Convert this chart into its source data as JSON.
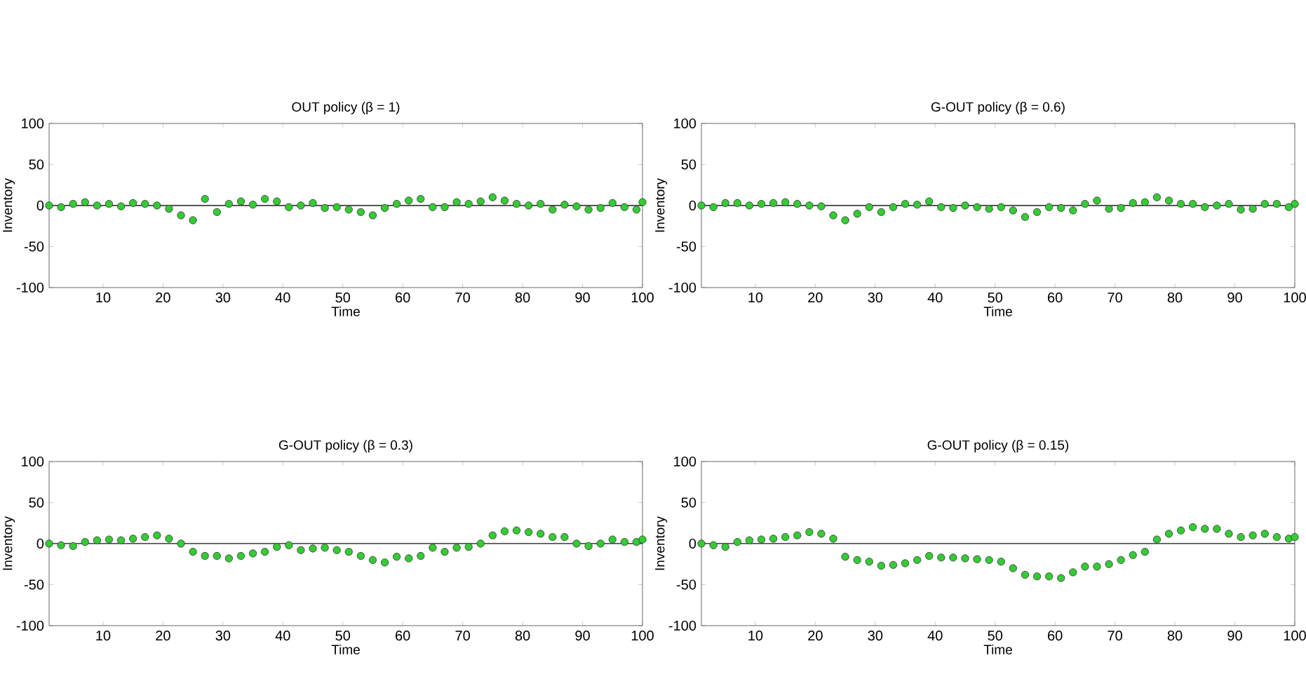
{
  "chart_data": [
    {
      "type": "scatter",
      "title": "OUT policy (β = 1)",
      "xlabel": "Time",
      "ylabel": "Inventory",
      "xlim": [
        1,
        100
      ],
      "ylim": [
        -100,
        100
      ],
      "xticks": [
        10,
        20,
        30,
        40,
        50,
        60,
        70,
        80,
        90,
        100
      ],
      "yticks": [
        -100,
        -50,
        0,
        50,
        100
      ],
      "marker": "circle",
      "ref_lines": [
        {
          "axis": "y",
          "value": 0,
          "color": "#555555"
        }
      ],
      "series": [
        {
          "color": "#33cc33",
          "x": [
            1,
            3,
            5,
            7,
            9,
            11,
            13,
            15,
            17,
            19,
            21,
            23,
            25,
            27,
            29,
            31,
            33,
            35,
            37,
            39,
            41,
            43,
            45,
            47,
            49,
            51,
            53,
            55,
            57,
            59,
            61,
            63,
            65,
            67,
            69,
            71,
            73,
            75,
            77,
            79,
            81,
            83,
            85,
            87,
            89,
            91,
            93,
            95,
            97,
            99,
            100
          ],
          "values": [
            0,
            -2,
            2,
            4,
            0,
            2,
            -1,
            3,
            2,
            0,
            -4,
            -12,
            -18,
            8,
            -8,
            2,
            5,
            1,
            8,
            5,
            -2,
            0,
            3,
            -3,
            -2,
            -5,
            -8,
            -12,
            -3,
            2,
            6,
            8,
            -2,
            -2,
            4,
            2,
            5,
            10,
            6,
            2,
            0,
            2,
            -5,
            1,
            -1,
            -5,
            -3,
            3,
            -2,
            -5,
            4
          ]
        }
      ]
    },
    {
      "type": "scatter",
      "title": "G-OUT policy (β = 0.6)",
      "xlabel": "Time",
      "ylabel": "Inventory",
      "xlim": [
        1,
        100
      ],
      "ylim": [
        -100,
        100
      ],
      "xticks": [
        10,
        20,
        30,
        40,
        50,
        60,
        70,
        80,
        90,
        100
      ],
      "yticks": [
        -100,
        -50,
        0,
        50,
        100
      ],
      "marker": "circle",
      "ref_lines": [
        {
          "axis": "y",
          "value": 0,
          "color": "#555555"
        }
      ],
      "series": [
        {
          "color": "#33cc33",
          "x": [
            1,
            3,
            5,
            7,
            9,
            11,
            13,
            15,
            17,
            19,
            21,
            23,
            25,
            27,
            29,
            31,
            33,
            35,
            37,
            39,
            41,
            43,
            45,
            47,
            49,
            51,
            53,
            55,
            57,
            59,
            61,
            63,
            65,
            67,
            69,
            71,
            73,
            75,
            77,
            79,
            81,
            83,
            85,
            87,
            89,
            91,
            93,
            95,
            97,
            99,
            100
          ],
          "values": [
            0,
            -2,
            3,
            3,
            0,
            2,
            3,
            4,
            2,
            0,
            -1,
            -12,
            -18,
            -10,
            -2,
            -8,
            -2,
            2,
            1,
            5,
            -2,
            -3,
            0,
            -2,
            -4,
            -2,
            -6,
            -14,
            -8,
            -2,
            -3,
            -6,
            2,
            6,
            -4,
            -3,
            3,
            4,
            10,
            6,
            2,
            2,
            -2,
            0,
            2,
            -5,
            -4,
            2,
            2,
            -2,
            2
          ]
        }
      ]
    },
    {
      "type": "scatter",
      "title": "G-OUT policy (β = 0.3)",
      "xlabel": "Time",
      "ylabel": "Inventory",
      "xlim": [
        1,
        100
      ],
      "ylim": [
        -100,
        100
      ],
      "xticks": [
        10,
        20,
        30,
        40,
        50,
        60,
        70,
        80,
        90,
        100
      ],
      "yticks": [
        -100,
        -50,
        0,
        50,
        100
      ],
      "marker": "circle",
      "ref_lines": [
        {
          "axis": "y",
          "value": 0,
          "color": "#555555"
        }
      ],
      "series": [
        {
          "color": "#33cc33",
          "x": [
            1,
            3,
            5,
            7,
            9,
            11,
            13,
            15,
            17,
            19,
            21,
            23,
            25,
            27,
            29,
            31,
            33,
            35,
            37,
            39,
            41,
            43,
            45,
            47,
            49,
            51,
            53,
            55,
            57,
            59,
            61,
            63,
            65,
            67,
            69,
            71,
            73,
            75,
            77,
            79,
            81,
            83,
            85,
            87,
            89,
            91,
            93,
            95,
            97,
            99,
            100
          ],
          "values": [
            0,
            -2,
            -3,
            2,
            4,
            5,
            4,
            6,
            8,
            10,
            6,
            0,
            -10,
            -15,
            -15,
            -18,
            -15,
            -12,
            -10,
            -4,
            -2,
            -8,
            -6,
            -5,
            -8,
            -10,
            -15,
            -20,
            -23,
            -16,
            -18,
            -15,
            -5,
            -10,
            -5,
            -4,
            0,
            10,
            15,
            16,
            14,
            12,
            8,
            8,
            0,
            -3,
            0,
            5,
            2,
            2,
            5
          ]
        }
      ]
    },
    {
      "type": "scatter",
      "title": "G-OUT policy (β = 0.15)",
      "xlabel": "Time",
      "ylabel": "Inventory",
      "xlim": [
        1,
        100
      ],
      "ylim": [
        -100,
        100
      ],
      "xticks": [
        10,
        20,
        30,
        40,
        50,
        60,
        70,
        80,
        90,
        100
      ],
      "yticks": [
        -100,
        -50,
        0,
        50,
        100
      ],
      "marker": "circle",
      "ref_lines": [
        {
          "axis": "y",
          "value": 0,
          "color": "#555555"
        }
      ],
      "series": [
        {
          "color": "#33cc33",
          "x": [
            1,
            3,
            5,
            7,
            9,
            11,
            13,
            15,
            17,
            19,
            21,
            23,
            25,
            27,
            29,
            31,
            33,
            35,
            37,
            39,
            41,
            43,
            45,
            47,
            49,
            51,
            53,
            55,
            57,
            59,
            61,
            63,
            65,
            67,
            69,
            71,
            73,
            75,
            77,
            79,
            81,
            83,
            85,
            87,
            89,
            91,
            93,
            95,
            97,
            99,
            100
          ],
          "values": [
            0,
            -2,
            -4,
            2,
            4,
            5,
            6,
            8,
            10,
            14,
            12,
            6,
            -16,
            -20,
            -22,
            -27,
            -26,
            -24,
            -20,
            -15,
            -17,
            -17,
            -18,
            -19,
            -20,
            -22,
            -30,
            -38,
            -40,
            -40,
            -42,
            -35,
            -28,
            -28,
            -25,
            -20,
            -14,
            -10,
            5,
            12,
            16,
            20,
            18,
            18,
            12,
            8,
            10,
            12,
            8,
            6,
            8
          ]
        }
      ]
    }
  ]
}
